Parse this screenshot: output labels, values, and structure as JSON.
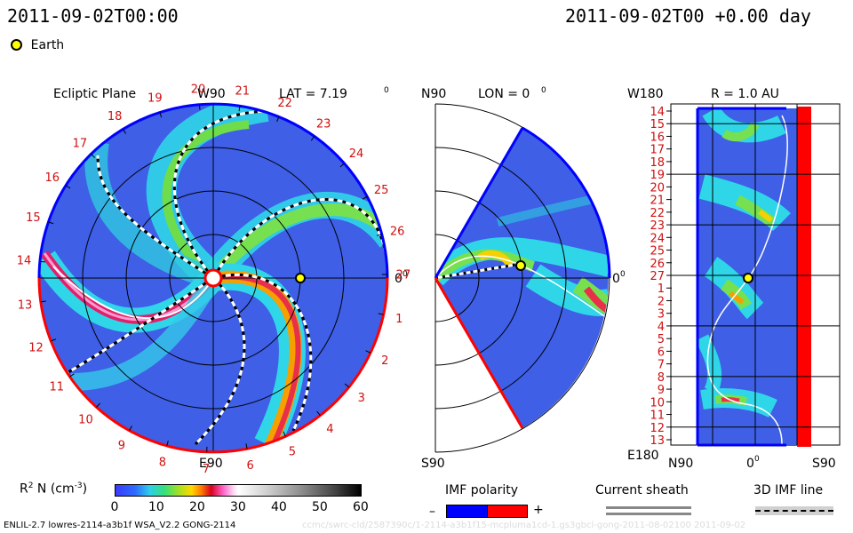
{
  "header": {
    "left_time": "2011-09-02T00:00",
    "right_time": "2011-09-02T00 +0.00 day",
    "earth_legend": "Earth"
  },
  "colors": {
    "blue_polarity": "#0000ff",
    "red_polarity": "#ff0000",
    "background_field": "#3e5fe6",
    "earth_marker": "#ffff00"
  },
  "panels": {
    "ecliptic": {
      "title": "Ecliptic Plane",
      "top_label": "W90",
      "bottom_label": "E90",
      "right_label": "0",
      "lat_label": "LAT = 7.19",
      "degree": "0",
      "carrington_ticks": [
        "20",
        "21",
        "22",
        "23",
        "24",
        "25",
        "26",
        "27",
        "1",
        "2",
        "3",
        "4",
        "5",
        "6",
        "7",
        "8",
        "9",
        "10",
        "11",
        "12",
        "13",
        "14",
        "15",
        "16",
        "17",
        "18",
        "19"
      ]
    },
    "meridional": {
      "top_label": "N90",
      "bottom_label": "S90",
      "lon_label": "LON = 0",
      "degree": "0",
      "right_label": "0"
    },
    "radial": {
      "r_label": "R = 1.0 AU",
      "top_left": "W180",
      "bottom_left": "E180",
      "bottom_labels": [
        "N90",
        "0",
        "S90"
      ],
      "bottom_degree": "0",
      "rows": [
        "14",
        "15",
        "16",
        "17",
        "18",
        "19",
        "20",
        "21",
        "22",
        "23",
        "24",
        "25",
        "26",
        "27",
        "1",
        "2",
        "3",
        "4",
        "5",
        "6",
        "7",
        "8",
        "9",
        "10",
        "11",
        "12",
        "13"
      ]
    }
  },
  "colorbar": {
    "label": "R",
    "label_sup": "2",
    "label_rest": " N (cm",
    "label_exp": "-3",
    "label_close": ")",
    "ticks": [
      "0",
      "10",
      "20",
      "30",
      "40",
      "50",
      "60"
    ]
  },
  "legends": {
    "imf_polarity": "IMF polarity",
    "minus": "–",
    "plus": "+",
    "current_sheath": "Current sheath",
    "imf_line": "3D IMF line"
  },
  "footer": {
    "model": "ENLIL-2.7 lowres-2114-a3b1f WSA_V2.2 GONG-2114",
    "watermark": "ccmc/swrc-cld/2587390c/1-2114-a3b1f15-mcpluma1cd-1.gs3gbcl-gong-2011-08-02100    2011-09-02"
  },
  "chart_data": {
    "type": "heatmap",
    "quantity": "R² N (cm⁻³)",
    "colorbar_range": [
      0,
      60
    ],
    "colorbar_ticks": [
      0,
      10,
      20,
      30,
      40,
      50,
      60
    ],
    "time": "2011-09-02T00:00",
    "offset_days": 0.0,
    "ecliptic_latitude_deg": 7.19,
    "meridional_longitude_deg": 0,
    "radial_shell_au": 1.0,
    "earth": {
      "present": true
    }
  }
}
